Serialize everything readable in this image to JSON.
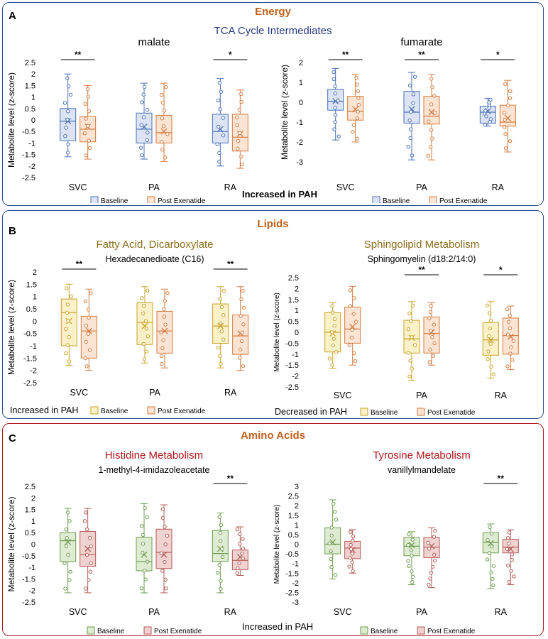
{
  "panels": [
    {
      "letter": "A",
      "title": "Energy",
      "subtitle": "TCA Cycle Intermediates",
      "footnote": "Increased in PAH",
      "charts": [
        {
          "type": "box",
          "title": "malate",
          "subtitle": "",
          "ylabel": "Metabolite level (z-score)",
          "yticks": [
            "2.5",
            "2",
            "1.5",
            "1",
            "0.5",
            "0",
            "-0.5",
            "-1",
            "-1.5",
            "-2",
            "-2.5"
          ],
          "categories": [
            "SVC",
            "PA",
            "RA"
          ],
          "significance": [
            "**",
            "",
            "*"
          ],
          "legend": [
            "Baseline",
            "Post Exenatide"
          ]
        },
        {
          "type": "box",
          "title": "fumarate",
          "subtitle": "",
          "ylabel": "Metabolite level (z-score)",
          "yticks": [
            "2",
            "1",
            "0",
            "-1",
            "-2",
            "-3"
          ],
          "categories": [
            "SVC",
            "PA",
            "RA"
          ],
          "significance": [
            "**",
            "**",
            "*"
          ],
          "legend": [
            "Baseline",
            "Post Exenatide"
          ]
        }
      ]
    },
    {
      "letter": "B",
      "title": "Lipids",
      "subtitle": "",
      "footnote": "",
      "charts": [
        {
          "type": "box",
          "title": "Fatty Acid, Dicarboxylate",
          "subtitle": "Hexadecanedioate (C16)",
          "ylabel": "Metabolite level (z-score)",
          "yticks": [
            "2",
            "1.5",
            "1",
            "0.5",
            "0",
            "-0.5",
            "-1",
            "-1.5",
            "-2",
            "-2.5"
          ],
          "categories": [
            "SVC",
            "PA",
            "RA"
          ],
          "significance": [
            "**",
            "",
            "**"
          ],
          "legend_note": "Increased in PAH",
          "legend": [
            "Baseline",
            "Post Exenatide"
          ]
        },
        {
          "type": "box",
          "title": "Sphingolipid Metabolism",
          "subtitle": "Sphingomyelin (d18:2/14:0)",
          "ylabel": "Metabolite level (z-score)",
          "yticks": [
            "2.5",
            "2",
            "1.5",
            "1",
            "0.5",
            "0",
            "-0.5",
            "-1",
            "-1.5",
            "-2",
            "-2.5"
          ],
          "categories": [
            "SVC",
            "PA",
            "RA"
          ],
          "significance": [
            "",
            "**",
            "*"
          ],
          "legend_note": "Decreased in PAH",
          "legend": [
            "Baseline",
            "Post Exenatide"
          ]
        }
      ]
    },
    {
      "letter": "C",
      "title": "Amino Acids",
      "subtitle": "",
      "footnote": "Increased in PAH",
      "charts": [
        {
          "type": "box",
          "title": "Histidine Metabolism",
          "subtitle": "1-methyl-4-imidazoleacetate",
          "ylabel": "Metabolite level (z-score)",
          "yticks": [
            "2.5",
            "2",
            "1.5",
            "1",
            "0.5",
            "0",
            "-0.5",
            "-1",
            "-1.5",
            "-2",
            "-2.5"
          ],
          "categories": [
            "SVC",
            "PA",
            "RA"
          ],
          "significance": [
            "",
            "",
            "**"
          ],
          "legend": [
            "Baseline",
            "Post Exenatide"
          ]
        },
        {
          "type": "box",
          "title": "Tyrosine Metabolism",
          "subtitle": "vanillylmandelate",
          "ylabel": "Metabolite level (z-score)",
          "yticks": [
            "3",
            "2.5",
            "2",
            "1.5",
            "1",
            "0.5",
            "0",
            "-0.5",
            "-1",
            "-1.5",
            "-2",
            "-2.5",
            "-3"
          ],
          "categories": [
            "SVC",
            "PA",
            "RA"
          ],
          "significance": [
            "",
            "",
            "**"
          ],
          "legend": [
            "Baseline",
            "Post Exenatide"
          ]
        }
      ]
    }
  ],
  "chart_data": [
    {
      "type": "box",
      "title": "malate",
      "ylim": [
        -2.5,
        2.5
      ],
      "categories": [
        "SVC",
        "PA",
        "RA"
      ],
      "series": [
        {
          "name": "Baseline",
          "color": "#4a70b9",
          "fill": "#dce4f3",
          "boxes": [
            {
              "min": -1.6,
              "q1": -0.9,
              "median": -0.05,
              "q3": 0.5,
              "max": 2.0,
              "mean": -0.05
            },
            {
              "min": -1.7,
              "q1": -1.0,
              "median": -0.4,
              "q3": 0.3,
              "max": 1.6,
              "mean": -0.3
            },
            {
              "min": -2.0,
              "q1": -1.0,
              "median": -0.5,
              "q3": 0.25,
              "max": 1.8,
              "mean": -0.4
            }
          ]
        },
        {
          "name": "Post Exenatide",
          "color": "#d67a3e",
          "fill": "#fbe4d3",
          "boxes": [
            {
              "min": -1.7,
              "q1": -0.95,
              "median": -0.4,
              "q3": 0.15,
              "max": 1.5,
              "mean": -0.3
            },
            {
              "min": -1.8,
              "q1": -1.0,
              "median": -0.55,
              "q3": 0.2,
              "max": 1.6,
              "mean": -0.5
            },
            {
              "min": -2.1,
              "q1": -1.35,
              "median": -0.75,
              "q3": 0.25,
              "max": 1.3,
              "mean": -0.6
            }
          ]
        }
      ],
      "significance": [
        "**",
        "",
        "*"
      ]
    },
    {
      "type": "box",
      "title": "fumarate",
      "ylim": [
        -3,
        2
      ],
      "categories": [
        "SVC",
        "PA",
        "RA"
      ],
      "series": [
        {
          "name": "Baseline",
          "color": "#4a70b9",
          "fill": "#dce4f3",
          "boxes": [
            {
              "min": -1.9,
              "q1": -0.4,
              "median": 0.05,
              "q3": 0.65,
              "max": 1.7,
              "mean": 0.05
            },
            {
              "min": -2.9,
              "q1": -1.05,
              "median": -0.5,
              "q3": 0.55,
              "max": 1.5,
              "mean": -0.35
            },
            {
              "min": -1.2,
              "q1": -1.05,
              "median": -0.5,
              "q3": -0.2,
              "max": 0.2,
              "mean": -0.45
            }
          ]
        },
        {
          "name": "Post Exenatide",
          "color": "#d67a3e",
          "fill": "#fbe4d3",
          "boxes": [
            {
              "min": -2.0,
              "q1": -0.9,
              "median": -0.45,
              "q3": 0.3,
              "max": 1.4,
              "mean": -0.35
            },
            {
              "min": -2.9,
              "q1": -1.1,
              "median": -0.7,
              "q3": 0.3,
              "max": 1.4,
              "mean": -0.5
            },
            {
              "min": -2.5,
              "q1": -1.2,
              "median": -1.0,
              "q3": -0.15,
              "max": 1.1,
              "mean": -0.8
            }
          ]
        }
      ],
      "significance": [
        "**",
        "**",
        "*"
      ]
    },
    {
      "type": "box",
      "title": "Fatty Acid, Dicarboxylate",
      "ylim": [
        -2.5,
        2
      ],
      "categories": [
        "SVC",
        "PA",
        "RA"
      ],
      "series": [
        {
          "name": "Baseline",
          "color": "#c9a227",
          "fill": "#fbf1c9",
          "boxes": [
            {
              "min": -1.8,
              "q1": -1.0,
              "median": 0.35,
              "q3": 0.9,
              "max": 1.5,
              "mean": 0.0
            },
            {
              "min": -1.7,
              "q1": -0.95,
              "median": -0.05,
              "q3": 0.75,
              "max": 1.4,
              "mean": -0.2
            },
            {
              "min": -1.9,
              "q1": -0.9,
              "median": -0.2,
              "q3": 0.7,
              "max": 1.4,
              "mean": -0.2
            }
          ]
        },
        {
          "name": "Post Exenatide",
          "color": "#d67a3e",
          "fill": "#fbe4d3",
          "boxes": [
            {
              "min": -2.0,
              "q1": -1.5,
              "median": -0.4,
              "q3": 0.2,
              "max": 1.3,
              "mean": -0.4
            },
            {
              "min": -1.9,
              "q1": -1.3,
              "median": -0.4,
              "q3": 0.4,
              "max": 1.3,
              "mean": -0.4
            },
            {
              "min": -2.0,
              "q1": -1.35,
              "median": -0.6,
              "q3": 0.25,
              "max": 1.4,
              "mean": -0.5
            }
          ]
        }
      ],
      "significance": [
        "**",
        "",
        "**"
      ]
    },
    {
      "type": "box",
      "title": "Sphingolipid Metabolism",
      "ylim": [
        -2.5,
        2.5
      ],
      "categories": [
        "SVC",
        "PA",
        "RA"
      ],
      "series": [
        {
          "name": "Baseline",
          "color": "#c9a227",
          "fill": "#fbf1c9",
          "boxes": [
            {
              "min": -1.65,
              "q1": -0.9,
              "median": 0.0,
              "q3": 0.9,
              "max": 1.35,
              "mean": -0.05
            },
            {
              "min": -2.2,
              "q1": -0.95,
              "median": -0.3,
              "q3": 0.55,
              "max": 1.4,
              "mean": -0.25
            },
            {
              "min": -2.1,
              "q1": -1.05,
              "median": -0.35,
              "q3": 0.45,
              "max": 1.4,
              "mean": -0.35
            }
          ]
        },
        {
          "name": "Post Exenatide",
          "color": "#d67a3e",
          "fill": "#fbe4d3",
          "boxes": [
            {
              "min": -1.5,
              "q1": -0.5,
              "median": 0.15,
              "q3": 1.15,
              "max": 2.1,
              "mean": 0.25
            },
            {
              "min": -1.5,
              "q1": -0.95,
              "median": -0.05,
              "q3": 0.7,
              "max": 1.35,
              "mean": 0.0
            },
            {
              "min": -1.7,
              "q1": -1.0,
              "median": -0.15,
              "q3": 0.65,
              "max": 1.2,
              "mean": -0.2
            }
          ]
        }
      ],
      "significance": [
        "",
        "**",
        "*"
      ]
    },
    {
      "type": "box",
      "title": "Histidine Metabolism",
      "ylim": [
        -2.5,
        2.5
      ],
      "categories": [
        "SVC",
        "PA",
        "RA"
      ],
      "series": [
        {
          "name": "Baseline",
          "color": "#6e9b4e",
          "fill": "#dfecd4",
          "boxes": [
            {
              "min": -2.1,
              "q1": -0.75,
              "median": 0.15,
              "q3": 0.5,
              "max": 1.55,
              "mean": 0.1
            },
            {
              "min": -2.1,
              "q1": -1.15,
              "median": -0.75,
              "q3": 0.3,
              "max": 1.75,
              "mean": -0.45
            },
            {
              "min": -2.1,
              "q1": -0.75,
              "median": -0.4,
              "q3": 0.6,
              "max": 1.35,
              "mean": -0.2
            }
          ]
        },
        {
          "name": "Post Exenatide",
          "color": "#b35a55",
          "fill": "#f0d3d1",
          "boxes": [
            {
              "min": -2.1,
              "q1": -0.95,
              "median": -0.45,
              "q3": 0.55,
              "max": 1.55,
              "mean": -0.2
            },
            {
              "min": -2.1,
              "q1": -1.05,
              "median": -0.35,
              "q3": 0.65,
              "max": 1.7,
              "mean": -0.45
            },
            {
              "min": -1.35,
              "q1": -1.1,
              "median": -0.7,
              "q3": -0.25,
              "max": 0.75,
              "mean": -0.55
            }
          ]
        }
      ],
      "significance": [
        "",
        "",
        "**"
      ]
    },
    {
      "type": "box",
      "title": "Tyrosine Metabolism",
      "ylim": [
        -3,
        3
      ],
      "categories": [
        "SVC",
        "PA",
        "RA"
      ],
      "series": [
        {
          "name": "Baseline",
          "color": "#6e9b4e",
          "fill": "#dfecd4",
          "boxes": [
            {
              "min": -1.8,
              "q1": -0.5,
              "median": 0.0,
              "q3": 0.85,
              "max": 2.3,
              "mean": 0.1
            },
            {
              "min": -2.1,
              "q1": -0.6,
              "median": -0.1,
              "q3": 0.35,
              "max": 0.65,
              "mean": -0.05
            },
            {
              "min": -2.3,
              "q1": -0.45,
              "median": 0.1,
              "q3": 0.6,
              "max": 1.05,
              "mean": 0.05
            }
          ]
        },
        {
          "name": "Post Exenatide",
          "color": "#b35a55",
          "fill": "#f0d3d1",
          "boxes": [
            {
              "min": -1.5,
              "q1": -0.75,
              "median": -0.2,
              "q3": 0.15,
              "max": 0.75,
              "mean": -0.3
            },
            {
              "min": -2.25,
              "q1": -0.7,
              "median": -0.15,
              "q3": 0.35,
              "max": 0.85,
              "mean": -0.1
            },
            {
              "min": -2.1,
              "q1": -0.45,
              "median": -0.15,
              "q3": 0.25,
              "max": 0.75,
              "mean": -0.25
            }
          ]
        }
      ],
      "significance": [
        "",
        "",
        "**"
      ]
    }
  ]
}
